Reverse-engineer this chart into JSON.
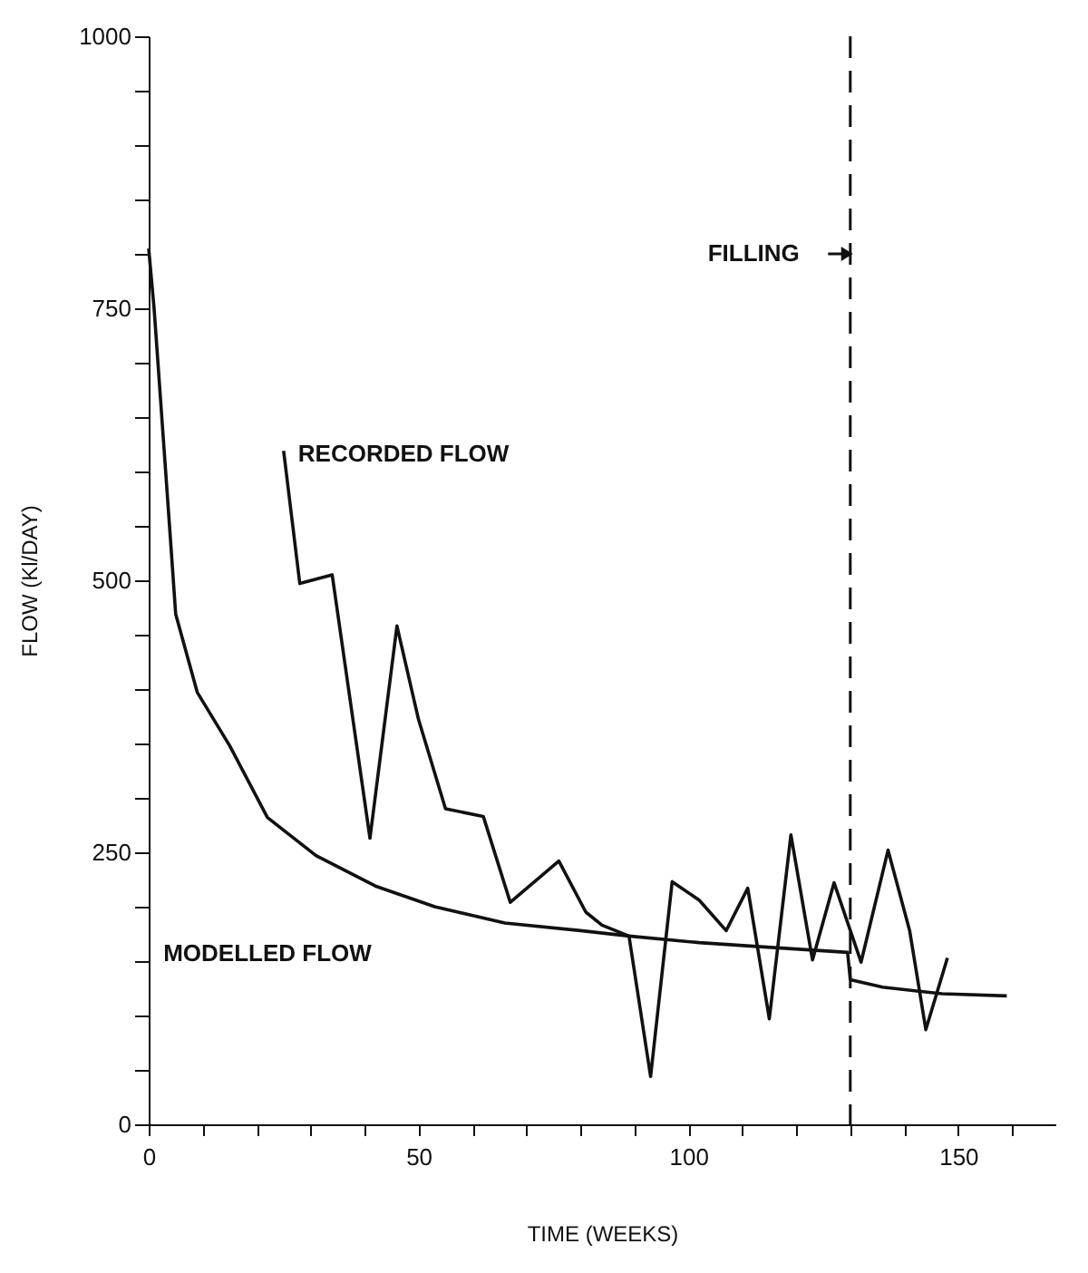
{
  "chart_data": {
    "type": "line",
    "xlabel": "TIME (WEEKS)",
    "ylabel": "FLOW (Kl/DAY)",
    "xlim": [
      0,
      168
    ],
    "ylim": [
      0,
      1000
    ],
    "xticks": [
      0,
      {
        "value": 10,
        "label": null
      },
      {
        "value": 20,
        "label": null
      },
      {
        "value": 30,
        "label": null
      },
      {
        "value": 40,
        "label": null
      },
      50,
      {
        "value": 60,
        "label": null
      },
      {
        "value": 70,
        "label": null
      },
      {
        "value": 80,
        "label": null
      },
      {
        "value": 90,
        "label": null
      },
      100,
      {
        "value": 110,
        "label": null
      },
      {
        "value": 120,
        "label": null
      },
      {
        "value": 130,
        "label": null
      },
      {
        "value": 140,
        "label": null
      },
      150,
      {
        "value": 160,
        "label": null
      }
    ],
    "yticks": [
      0,
      {
        "value": 50,
        "label": null
      },
      {
        "value": 100,
        "label": null
      },
      {
        "value": 150,
        "label": null
      },
      {
        "value": 200,
        "label": null
      },
      250,
      {
        "value": 300,
        "label": null
      },
      {
        "value": 350,
        "label": null
      },
      {
        "value": 400,
        "label": null
      },
      {
        "value": 450,
        "label": null
      },
      500,
      {
        "value": 550,
        "label": null
      },
      {
        "value": 600,
        "label": null
      },
      {
        "value": 650,
        "label": null
      },
      {
        "value": 700,
        "label": null
      },
      750,
      {
        "value": 800,
        "label": null
      },
      {
        "value": 850,
        "label": null
      },
      {
        "value": 900,
        "label": null
      },
      {
        "value": 950,
        "label": null
      },
      1000
    ],
    "grid": false,
    "legend": false,
    "line_style": "solid",
    "series": [
      {
        "name": "RECORDED FLOW",
        "color": "#111111",
        "x": [
          25,
          28,
          34,
          41,
          46,
          50,
          55,
          62,
          67,
          76,
          81,
          84,
          89,
          93,
          97,
          102,
          107,
          111,
          115,
          119,
          123,
          127,
          132,
          137,
          141,
          144,
          148
        ],
        "values": [
          619,
          497,
          505,
          263,
          458,
          372,
          290,
          283,
          204,
          242,
          195,
          183,
          173,
          44,
          223,
          206,
          178,
          217,
          97,
          266,
          151,
          222,
          149,
          252,
          178,
          87,
          153
        ]
      },
      {
        "name": "MODELLED FLOW",
        "color": "#111111",
        "x": [
          0,
          1,
          4,
          5,
          9,
          15,
          22,
          31,
          42,
          53,
          66,
          80,
          89,
          102,
          114,
          129.5,
          130,
          136,
          147,
          159
        ],
        "values": [
          805,
          750,
          540,
          469,
          397,
          348,
          282,
          247,
          219,
          200,
          185,
          178,
          173,
          167,
          163,
          158,
          133,
          126,
          120,
          118
        ]
      }
    ],
    "ref_lines": [
      {
        "axis": "x",
        "value": 130,
        "label": "FILLING",
        "line_style": "dashed",
        "color": "#111111"
      }
    ]
  }
}
